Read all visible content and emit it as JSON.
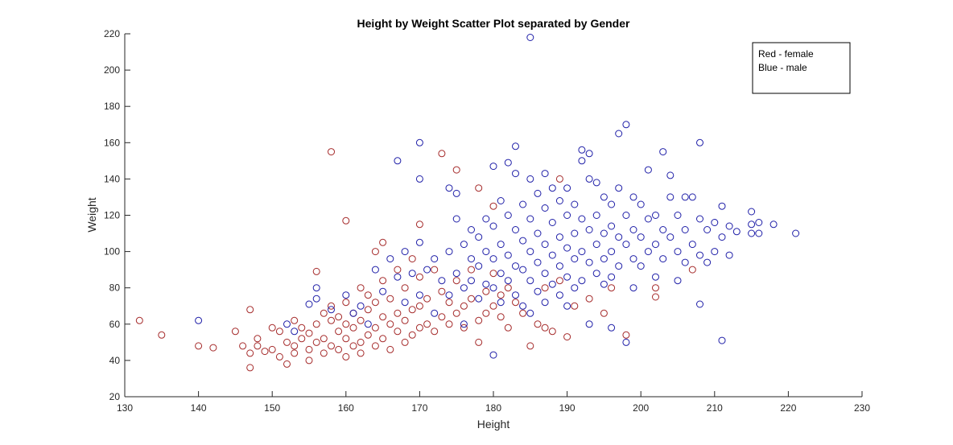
{
  "chart_data": {
    "type": "scatter",
    "title": "Height by Weight Scatter Plot separated by Gender",
    "xlabel": "Height",
    "ylabel": "Weight",
    "xlim": [
      130,
      230
    ],
    "ylim": [
      20,
      220
    ],
    "xticks": [
      "130",
      "140",
      "150",
      "160",
      "170",
      "180",
      "190",
      "200",
      "210",
      "220",
      "230"
    ],
    "yticks": [
      "20",
      "40",
      "60",
      "80",
      "100",
      "120",
      "140",
      "160",
      "180",
      "200",
      "220"
    ],
    "grid": false,
    "legend": {
      "position": "top-right",
      "entries": [
        "Red - female",
        "Blue - male"
      ]
    },
    "marker": "open-circle",
    "series": [
      {
        "color": "#a52a2a",
        "points": [
          [
            132,
            62
          ],
          [
            135,
            54
          ],
          [
            140,
            48
          ],
          [
            142,
            47
          ],
          [
            145,
            56
          ],
          [
            146,
            48
          ],
          [
            147,
            68
          ],
          [
            147,
            36
          ],
          [
            147,
            44
          ],
          [
            148,
            48
          ],
          [
            148,
            52
          ],
          [
            149,
            45
          ],
          [
            150,
            58
          ],
          [
            150,
            46
          ],
          [
            151,
            42
          ],
          [
            151,
            56
          ],
          [
            152,
            38
          ],
          [
            152,
            50
          ],
          [
            153,
            48
          ],
          [
            153,
            62
          ],
          [
            153,
            44
          ],
          [
            154,
            52
          ],
          [
            154,
            58
          ],
          [
            155,
            46
          ],
          [
            155,
            40
          ],
          [
            155,
            55
          ],
          [
            156,
            89
          ],
          [
            156,
            50
          ],
          [
            156,
            60
          ],
          [
            157,
            44
          ],
          [
            157,
            66
          ],
          [
            157,
            52
          ],
          [
            158,
            155
          ],
          [
            158,
            48
          ],
          [
            158,
            62
          ],
          [
            158,
            70
          ],
          [
            159,
            46
          ],
          [
            159,
            56
          ],
          [
            159,
            64
          ],
          [
            160,
            117
          ],
          [
            160,
            42
          ],
          [
            160,
            52
          ],
          [
            160,
            60
          ],
          [
            160,
            72
          ],
          [
            161,
            48
          ],
          [
            161,
            58
          ],
          [
            161,
            66
          ],
          [
            162,
            50
          ],
          [
            162,
            62
          ],
          [
            162,
            80
          ],
          [
            162,
            44
          ],
          [
            163,
            54
          ],
          [
            163,
            68
          ],
          [
            163,
            76
          ],
          [
            164,
            48
          ],
          [
            164,
            58
          ],
          [
            164,
            72
          ],
          [
            164,
            100
          ],
          [
            165,
            52
          ],
          [
            165,
            64
          ],
          [
            165,
            84
          ],
          [
            165,
            105
          ],
          [
            166,
            46
          ],
          [
            166,
            60
          ],
          [
            166,
            74
          ],
          [
            167,
            56
          ],
          [
            167,
            66
          ],
          [
            167,
            90
          ],
          [
            168,
            50
          ],
          [
            168,
            62
          ],
          [
            168,
            80
          ],
          [
            169,
            54
          ],
          [
            169,
            68
          ],
          [
            169,
            96
          ],
          [
            170,
            115
          ],
          [
            170,
            58
          ],
          [
            170,
            70
          ],
          [
            170,
            86
          ],
          [
            171,
            60
          ],
          [
            171,
            74
          ],
          [
            172,
            56
          ],
          [
            172,
            90
          ],
          [
            173,
            154
          ],
          [
            173,
            64
          ],
          [
            173,
            78
          ],
          [
            174,
            60
          ],
          [
            174,
            72
          ],
          [
            175,
            145
          ],
          [
            175,
            66
          ],
          [
            175,
            84
          ],
          [
            176,
            58
          ],
          [
            176,
            70
          ],
          [
            177,
            74
          ],
          [
            177,
            90
          ],
          [
            178,
            135
          ],
          [
            178,
            62
          ],
          [
            178,
            50
          ],
          [
            179,
            78
          ],
          [
            179,
            66
          ],
          [
            180,
            125
          ],
          [
            180,
            70
          ],
          [
            180,
            88
          ],
          [
            181,
            64
          ],
          [
            181,
            76
          ],
          [
            182,
            58
          ],
          [
            182,
            80
          ],
          [
            183,
            72
          ],
          [
            184,
            66
          ],
          [
            185,
            48
          ],
          [
            186,
            60
          ],
          [
            187,
            58
          ],
          [
            187,
            80
          ],
          [
            188,
            56
          ],
          [
            189,
            140
          ],
          [
            189,
            84
          ],
          [
            190,
            53
          ],
          [
            191,
            70
          ],
          [
            193,
            74
          ],
          [
            195,
            66
          ],
          [
            196,
            80
          ],
          [
            198,
            54
          ],
          [
            202,
            80
          ],
          [
            202,
            75
          ],
          [
            207,
            90
          ]
        ]
      },
      {
        "color": "#1f1fa8",
        "points": [
          [
            140,
            62
          ],
          [
            152,
            60
          ],
          [
            153,
            56
          ],
          [
            155,
            71
          ],
          [
            156,
            80
          ],
          [
            156,
            74
          ],
          [
            158,
            68
          ],
          [
            160,
            76
          ],
          [
            161,
            66
          ],
          [
            162,
            70
          ],
          [
            163,
            60
          ],
          [
            164,
            90
          ],
          [
            165,
            78
          ],
          [
            166,
            96
          ],
          [
            167,
            150
          ],
          [
            167,
            86
          ],
          [
            168,
            72
          ],
          [
            168,
            100
          ],
          [
            169,
            88
          ],
          [
            170,
            160
          ],
          [
            170,
            140
          ],
          [
            170,
            105
          ],
          [
            170,
            76
          ],
          [
            171,
            90
          ],
          [
            172,
            96
          ],
          [
            172,
            66
          ],
          [
            173,
            84
          ],
          [
            174,
            135
          ],
          [
            174,
            100
          ],
          [
            174,
            76
          ],
          [
            175,
            132
          ],
          [
            175,
            118
          ],
          [
            175,
            88
          ],
          [
            176,
            104
          ],
          [
            176,
            80
          ],
          [
            176,
            60
          ],
          [
            177,
            112
          ],
          [
            177,
            96
          ],
          [
            177,
            84
          ],
          [
            178,
            108
          ],
          [
            178,
            92
          ],
          [
            178,
            74
          ],
          [
            179,
            118
          ],
          [
            179,
            100
          ],
          [
            179,
            82
          ],
          [
            180,
            147
          ],
          [
            180,
            43
          ],
          [
            180,
            114
          ],
          [
            180,
            96
          ],
          [
            180,
            80
          ],
          [
            181,
            128
          ],
          [
            181,
            104
          ],
          [
            181,
            88
          ],
          [
            181,
            72
          ],
          [
            182,
            149
          ],
          [
            182,
            120
          ],
          [
            182,
            98
          ],
          [
            182,
            84
          ],
          [
            183,
            158
          ],
          [
            183,
            143
          ],
          [
            183,
            112
          ],
          [
            183,
            92
          ],
          [
            183,
            76
          ],
          [
            184,
            126
          ],
          [
            184,
            106
          ],
          [
            184,
            90
          ],
          [
            184,
            70
          ],
          [
            185,
            218
          ],
          [
            185,
            140
          ],
          [
            185,
            118
          ],
          [
            185,
            100
          ],
          [
            185,
            84
          ],
          [
            185,
            66
          ],
          [
            186,
            132
          ],
          [
            186,
            110
          ],
          [
            186,
            94
          ],
          [
            186,
            78
          ],
          [
            187,
            143
          ],
          [
            187,
            124
          ],
          [
            187,
            104
          ],
          [
            187,
            88
          ],
          [
            187,
            72
          ],
          [
            188,
            135
          ],
          [
            188,
            116
          ],
          [
            188,
            98
          ],
          [
            188,
            82
          ],
          [
            189,
            128
          ],
          [
            189,
            108
          ],
          [
            189,
            92
          ],
          [
            189,
            76
          ],
          [
            190,
            135
          ],
          [
            190,
            120
          ],
          [
            190,
            102
          ],
          [
            190,
            86
          ],
          [
            190,
            70
          ],
          [
            191,
            126
          ],
          [
            191,
            110
          ],
          [
            191,
            96
          ],
          [
            191,
            80
          ],
          [
            192,
            156
          ],
          [
            192,
            150
          ],
          [
            192,
            118
          ],
          [
            192,
            100
          ],
          [
            192,
            84
          ],
          [
            193,
            154
          ],
          [
            193,
            140
          ],
          [
            193,
            112
          ],
          [
            193,
            94
          ],
          [
            193,
            60
          ],
          [
            194,
            138
          ],
          [
            194,
            120
          ],
          [
            194,
            104
          ],
          [
            194,
            88
          ],
          [
            195,
            130
          ],
          [
            195,
            110
          ],
          [
            195,
            96
          ],
          [
            195,
            82
          ],
          [
            196,
            126
          ],
          [
            196,
            114
          ],
          [
            196,
            100
          ],
          [
            196,
            86
          ],
          [
            196,
            58
          ],
          [
            197,
            165
          ],
          [
            197,
            135
          ],
          [
            197,
            108
          ],
          [
            197,
            92
          ],
          [
            198,
            170
          ],
          [
            198,
            120
          ],
          [
            198,
            104
          ],
          [
            198,
            50
          ],
          [
            199,
            130
          ],
          [
            199,
            112
          ],
          [
            199,
            96
          ],
          [
            199,
            80
          ],
          [
            200,
            126
          ],
          [
            200,
            108
          ],
          [
            200,
            92
          ],
          [
            201,
            145
          ],
          [
            201,
            118
          ],
          [
            201,
            100
          ],
          [
            202,
            120
          ],
          [
            202,
            104
          ],
          [
            202,
            86
          ],
          [
            203,
            155
          ],
          [
            203,
            112
          ],
          [
            203,
            96
          ],
          [
            204,
            142
          ],
          [
            204,
            130
          ],
          [
            204,
            108
          ],
          [
            205,
            120
          ],
          [
            205,
            100
          ],
          [
            205,
            84
          ],
          [
            206,
            130
          ],
          [
            206,
            112
          ],
          [
            206,
            94
          ],
          [
            207,
            130
          ],
          [
            207,
            104
          ],
          [
            208,
            160
          ],
          [
            208,
            118
          ],
          [
            208,
            71
          ],
          [
            208,
            98
          ],
          [
            209,
            112
          ],
          [
            209,
            94
          ],
          [
            210,
            116
          ],
          [
            210,
            100
          ],
          [
            211,
            125
          ],
          [
            211,
            51
          ],
          [
            211,
            108
          ],
          [
            212,
            114
          ],
          [
            212,
            98
          ],
          [
            213,
            111
          ],
          [
            215,
            122
          ],
          [
            215,
            115
          ],
          [
            215,
            110
          ],
          [
            216,
            116
          ],
          [
            216,
            110
          ],
          [
            218,
            115
          ],
          [
            221,
            110
          ]
        ]
      }
    ]
  }
}
